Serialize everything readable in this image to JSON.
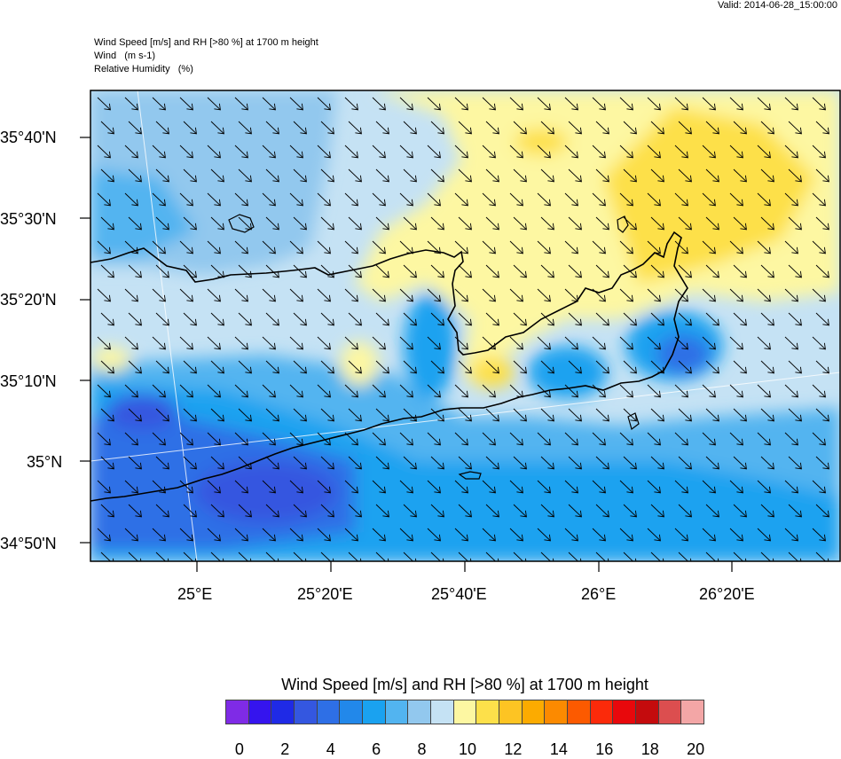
{
  "valid_time": "Valid: 2014-06-28_15:00:00",
  "header_lines": [
    "Wind Speed [m/s] and RH [>80 %] at 1700 m height",
    "Wind   (m s-1)",
    "Relative Humidity   (%)"
  ],
  "lat_labels": [
    "35°40'N",
    "35°30'N",
    "35°20'N",
    "35°10'N",
    "35°N",
    "34°50'N"
  ],
  "lon_labels": [
    "25°E",
    "25°20'E",
    "25°40'E",
    "26°E",
    "26°20'E"
  ],
  "colorbar_title": "Wind Speed [m/s] and RH [>80 %] at 1700 m height",
  "colorbar_ticks": [
    "0",
    "2",
    "4",
    "6",
    "8",
    "10",
    "12",
    "14",
    "16",
    "18",
    "20"
  ],
  "colorbar_colors": [
    "#7f2be6",
    "#3514ee",
    "#1f2ae6",
    "#3457e0",
    "#2e6fe6",
    "#2288ea",
    "#1aa2f0",
    "#52b4f0",
    "#92c8ee",
    "#c5e2f4",
    "#fdf7a2",
    "#fde04a",
    "#fdc423",
    "#fcab00",
    "#fc8a00",
    "#fc5a00",
    "#fb2a0a",
    "#e8080c",
    "#c40b0d",
    "#dc4e4f",
    "#f3a6a6"
  ],
  "colors": {
    "ocean_light": "#c5e2f4",
    "ocean_mid": "#92c8ee",
    "ocean_blue": "#52b4f0",
    "ocean_deep": "#1aa2f0",
    "strong": "#2288ea",
    "yellow_light": "#fdf7a2",
    "yellow": "#fde04a"
  }
}
